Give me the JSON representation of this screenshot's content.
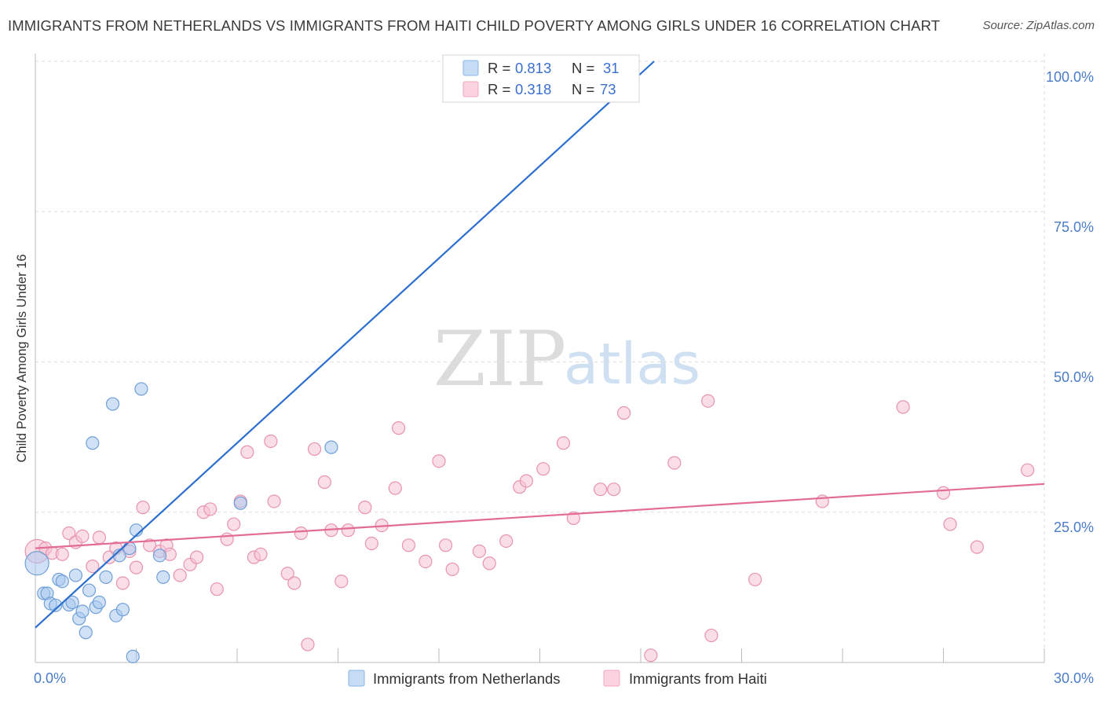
{
  "header": {
    "title": "IMMIGRANTS FROM NETHERLANDS VS IMMIGRANTS FROM HAITI CHILD POVERTY AMONG GIRLS UNDER 16 CORRELATION CHART",
    "source": "Source: ZipAtlas.com"
  },
  "watermark": {
    "zip": "ZIP",
    "atlas": "atlas"
  },
  "legend": {
    "r_label": "R = ",
    "n_label": "N = ",
    "rows": [
      {
        "r": "0.813",
        "n": "31",
        "color": "#8ab4e8"
      },
      {
        "r": "0.318",
        "n": "73",
        "color": "#f2a6bf"
      }
    ]
  },
  "bottom_legend": [
    {
      "label": "Immigrants from Netherlands",
      "color": "#8ab4e8"
    },
    {
      "label": "Immigrants from Haiti",
      "color": "#f2a6bf"
    }
  ],
  "colors": {
    "blue_stroke": "#6f9fd8",
    "blue_fill": "#a9c8ee",
    "blue_line": "#2c6fce",
    "pink_stroke": "#e893ae",
    "pink_fill": "#f6c3d3",
    "pink_line": "#e26c96",
    "grid": "#dddddd",
    "axis_label": "#4a7cc8"
  },
  "chart_data": {
    "type": "scatter",
    "title": "IMMIGRANTS FROM NETHERLANDS VS IMMIGRANTS FROM HAITI CHILD POVERTY AMONG GIRLS UNDER 16 CORRELATION CHART",
    "xlabel": "",
    "ylabel": "Child Poverty Among Girls Under 16",
    "xlim": [
      0,
      30
    ],
    "ylim": [
      0,
      100
    ],
    "x_tick_labels": [
      "0.0%",
      "30.0%"
    ],
    "y_tick_labels": [
      "100.0%",
      "75.0%",
      "50.0%",
      "25.0%"
    ],
    "y_ticks": [
      100,
      75,
      50,
      25
    ],
    "series": [
      {
        "name": "Immigrants from Netherlands",
        "R": 0.813,
        "N": 31,
        "trend": {
          "x": [
            0,
            18.4
          ],
          "y": [
            5.8,
            100
          ]
        },
        "points": [
          {
            "x": 0.05,
            "y": 16.5,
            "big": true
          },
          {
            "x": 0.25,
            "y": 11.5
          },
          {
            "x": 0.35,
            "y": 11.5
          },
          {
            "x": 0.45,
            "y": 9.8
          },
          {
            "x": 0.6,
            "y": 9.5
          },
          {
            "x": 0.7,
            "y": 13.8
          },
          {
            "x": 0.8,
            "y": 13.5
          },
          {
            "x": 1.0,
            "y": 9.6
          },
          {
            "x": 1.1,
            "y": 10.0
          },
          {
            "x": 1.2,
            "y": 14.5
          },
          {
            "x": 1.3,
            "y": 7.3
          },
          {
            "x": 1.4,
            "y": 8.5
          },
          {
            "x": 1.5,
            "y": 5.0
          },
          {
            "x": 1.6,
            "y": 12.0
          },
          {
            "x": 1.7,
            "y": 36.5
          },
          {
            "x": 1.8,
            "y": 9.2
          },
          {
            "x": 1.9,
            "y": 10.0
          },
          {
            "x": 2.1,
            "y": 14.2
          },
          {
            "x": 2.3,
            "y": 43.0
          },
          {
            "x": 2.4,
            "y": 7.8
          },
          {
            "x": 2.5,
            "y": 17.8
          },
          {
            "x": 2.6,
            "y": 8.8
          },
          {
            "x": 2.8,
            "y": 19.0
          },
          {
            "x": 2.9,
            "y": 1.0
          },
          {
            "x": 3.0,
            "y": 22.0
          },
          {
            "x": 3.15,
            "y": 45.5
          },
          {
            "x": 3.7,
            "y": 17.8
          },
          {
            "x": 3.8,
            "y": 14.2
          },
          {
            "x": 6.1,
            "y": 26.5
          },
          {
            "x": 8.8,
            "y": 35.8
          }
        ]
      },
      {
        "name": "Immigrants from Haiti",
        "R": 0.318,
        "N": 73,
        "trend": {
          "x": [
            0,
            30
          ],
          "y": [
            19,
            29.7
          ]
        },
        "points": [
          {
            "x": 0.05,
            "y": 18.5,
            "big": true
          },
          {
            "x": 0.3,
            "y": 19.0
          },
          {
            "x": 0.5,
            "y": 18.2
          },
          {
            "x": 0.8,
            "y": 18.0
          },
          {
            "x": 1.0,
            "y": 21.5
          },
          {
            "x": 1.2,
            "y": 20.0
          },
          {
            "x": 1.4,
            "y": 21.0
          },
          {
            "x": 1.7,
            "y": 16.0
          },
          {
            "x": 1.9,
            "y": 20.8
          },
          {
            "x": 2.2,
            "y": 17.5
          },
          {
            "x": 2.4,
            "y": 19.0
          },
          {
            "x": 2.6,
            "y": 13.2
          },
          {
            "x": 2.8,
            "y": 18.5
          },
          {
            "x": 3.0,
            "y": 15.8
          },
          {
            "x": 3.2,
            "y": 25.8
          },
          {
            "x": 3.4,
            "y": 19.5
          },
          {
            "x": 3.7,
            "y": 18.5
          },
          {
            "x": 3.9,
            "y": 19.5
          },
          {
            "x": 4.0,
            "y": 18.0
          },
          {
            "x": 4.3,
            "y": 14.5
          },
          {
            "x": 4.6,
            "y": 16.3
          },
          {
            "x": 4.8,
            "y": 17.5
          },
          {
            "x": 5.0,
            "y": 25.0
          },
          {
            "x": 5.2,
            "y": 25.5
          },
          {
            "x": 5.4,
            "y": 12.2
          },
          {
            "x": 5.7,
            "y": 20.5
          },
          {
            "x": 5.9,
            "y": 23.0
          },
          {
            "x": 6.1,
            "y": 26.8
          },
          {
            "x": 6.3,
            "y": 35.0
          },
          {
            "x": 6.5,
            "y": 17.5
          },
          {
            "x": 6.7,
            "y": 18.0
          },
          {
            "x": 7.0,
            "y": 36.8
          },
          {
            "x": 7.1,
            "y": 26.8
          },
          {
            "x": 7.5,
            "y": 14.8
          },
          {
            "x": 7.7,
            "y": 13.2
          },
          {
            "x": 7.9,
            "y": 21.5
          },
          {
            "x": 8.1,
            "y": 3.0
          },
          {
            "x": 8.3,
            "y": 35.5
          },
          {
            "x": 8.6,
            "y": 30.0
          },
          {
            "x": 8.8,
            "y": 22.0
          },
          {
            "x": 9.1,
            "y": 13.5
          },
          {
            "x": 9.3,
            "y": 22.0
          },
          {
            "x": 9.8,
            "y": 25.8
          },
          {
            "x": 10.0,
            "y": 19.8
          },
          {
            "x": 10.3,
            "y": 22.8
          },
          {
            "x": 10.7,
            "y": 29.0
          },
          {
            "x": 10.8,
            "y": 39.0
          },
          {
            "x": 11.1,
            "y": 19.5
          },
          {
            "x": 11.6,
            "y": 16.8
          },
          {
            "x": 12.0,
            "y": 33.5
          },
          {
            "x": 12.2,
            "y": 19.5
          },
          {
            "x": 12.4,
            "y": 15.5
          },
          {
            "x": 13.2,
            "y": 18.5
          },
          {
            "x": 13.5,
            "y": 16.5
          },
          {
            "x": 14.0,
            "y": 20.2
          },
          {
            "x": 14.4,
            "y": 29.2
          },
          {
            "x": 14.6,
            "y": 30.2
          },
          {
            "x": 15.1,
            "y": 32.2
          },
          {
            "x": 15.7,
            "y": 36.5
          },
          {
            "x": 16.0,
            "y": 24.0
          },
          {
            "x": 16.8,
            "y": 28.8
          },
          {
            "x": 17.2,
            "y": 28.8
          },
          {
            "x": 17.5,
            "y": 41.5
          },
          {
            "x": 18.3,
            "y": 1.2
          },
          {
            "x": 19.0,
            "y": 33.2
          },
          {
            "x": 20.0,
            "y": 43.5
          },
          {
            "x": 20.1,
            "y": 4.5
          },
          {
            "x": 21.4,
            "y": 13.8
          },
          {
            "x": 23.4,
            "y": 26.8
          },
          {
            "x": 25.8,
            "y": 42.5
          },
          {
            "x": 27.0,
            "y": 28.2
          },
          {
            "x": 27.2,
            "y": 23.0
          },
          {
            "x": 28.0,
            "y": 19.2
          },
          {
            "x": 29.5,
            "y": 32.0
          }
        ]
      }
    ]
  }
}
